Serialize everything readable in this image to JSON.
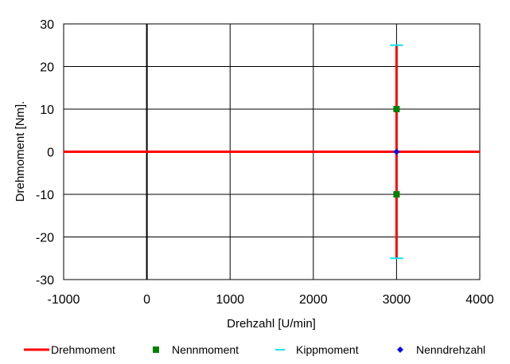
{
  "chart_data": {
    "type": "line",
    "title": "",
    "xlabel": "Drehzahl [U/min]",
    "ylabel": "Drehmoment [Nm].",
    "xlim": [
      -1000,
      4000
    ],
    "ylim": [
      -30,
      30
    ],
    "x_ticks": [
      -1000,
      0,
      1000,
      2000,
      3000,
      4000
    ],
    "y_ticks": [
      -30,
      -20,
      -10,
      0,
      10,
      20,
      30
    ],
    "x_tick_labels": [
      "-1000",
      "0",
      "1000",
      "2000",
      "3000",
      "4000"
    ],
    "y_tick_labels": [
      "-30",
      "-20",
      "-10",
      "0",
      "10",
      "20",
      "30"
    ],
    "grid": true,
    "legend_position": "bottom",
    "series": [
      {
        "name": "Drehmoment",
        "kind": "line",
        "color": "#ff0000",
        "segments": [
          [
            [
              -1000,
              0
            ],
            [
              4000,
              0
            ]
          ],
          [
            [
              3000,
              -25
            ],
            [
              3000,
              25
            ]
          ]
        ]
      },
      {
        "name": "Nennmoment",
        "kind": "marker",
        "marker": "square",
        "color": "#008000",
        "points": [
          [
            3000,
            10
          ],
          [
            3000,
            -10
          ]
        ]
      },
      {
        "name": "Kippmoment",
        "kind": "marker",
        "marker": "dash",
        "color": "#00e5ee",
        "points": [
          [
            3000,
            25
          ],
          [
            3000,
            -25
          ]
        ]
      },
      {
        "name": "Nenndrehzahl",
        "kind": "marker",
        "marker": "diamond",
        "color": "#0000ff",
        "points": [
          [
            3000,
            0
          ]
        ]
      }
    ]
  }
}
